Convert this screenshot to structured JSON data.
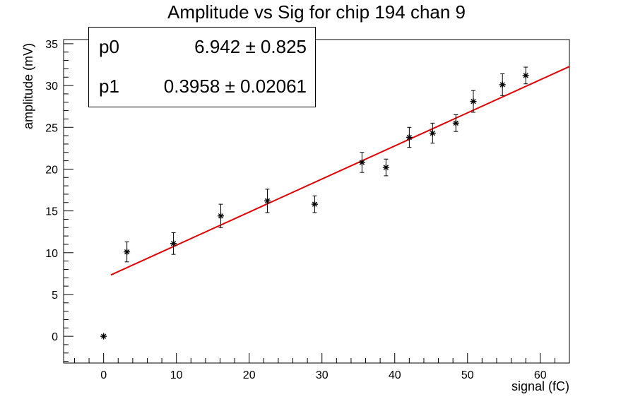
{
  "chart_data": {
    "type": "scatter",
    "title": "Amplitude vs Sig for chip 194 chan 9",
    "xlabel": "signal (fC)",
    "ylabel": "amplitude (mV)",
    "xlim": [
      -5.5,
      64
    ],
    "ylim": [
      -3.2,
      35.5
    ],
    "xticks": [
      0,
      10,
      20,
      30,
      40,
      50,
      60
    ],
    "yticks": [
      0,
      5,
      10,
      15,
      20,
      25,
      30,
      35
    ],
    "grid": false,
    "points": [
      {
        "x": 0,
        "y": 0,
        "err": 0
      },
      {
        "x": 3.2,
        "y": 10.1,
        "err": 1.2
      },
      {
        "x": 9.6,
        "y": 11.1,
        "err": 1.3
      },
      {
        "x": 16.1,
        "y": 14.4,
        "err": 1.4
      },
      {
        "x": 22.5,
        "y": 16.2,
        "err": 1.4
      },
      {
        "x": 29.0,
        "y": 15.8,
        "err": 1.0
      },
      {
        "x": 35.5,
        "y": 20.8,
        "err": 1.2
      },
      {
        "x": 38.8,
        "y": 20.2,
        "err": 1.0
      },
      {
        "x": 42.0,
        "y": 23.8,
        "err": 1.2
      },
      {
        "x": 45.2,
        "y": 24.3,
        "err": 1.2
      },
      {
        "x": 48.4,
        "y": 25.5,
        "err": 1.0
      },
      {
        "x": 50.8,
        "y": 28.1,
        "err": 1.3
      },
      {
        "x": 54.8,
        "y": 30.1,
        "err": 1.3
      },
      {
        "x": 58.0,
        "y": 31.2,
        "err": 1.0
      }
    ],
    "fit": {
      "p0": 6.942,
      "p1": 0.3958,
      "x_range": [
        1.0,
        64
      ],
      "color": "#e00000"
    },
    "marker_color": "#000000"
  },
  "stats_box": {
    "rows": [
      {
        "name": "p0",
        "value": "6.942 ± 0.825"
      },
      {
        "name": "p1",
        "value": "0.3958 ± 0.02061"
      }
    ]
  }
}
